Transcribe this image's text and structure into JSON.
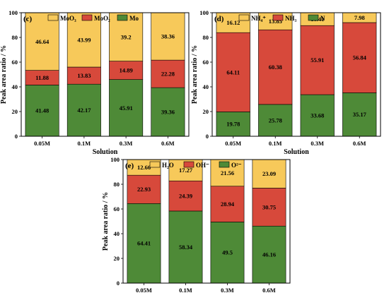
{
  "colors": {
    "yellow": "#F7C95A",
    "red": "#D7493B",
    "green": "#4E8A37"
  },
  "chart_data": [
    {
      "type": "bar",
      "stacked": true,
      "panel_label": "(c)",
      "categories": [
        "0.05M",
        "0.1M",
        "0.3M",
        "0.6M"
      ],
      "series": [
        {
          "name": "Mo",
          "color": "green",
          "values": [
            41.48,
            42.17,
            45.91,
            39.36
          ]
        },
        {
          "name": "MoO₂",
          "color": "red",
          "values": [
            11.88,
            13.83,
            14.89,
            22.28
          ]
        },
        {
          "name": "MoO₃",
          "color": "yellow",
          "values": [
            46.64,
            43.99,
            39.2,
            38.36
          ]
        }
      ],
      "legend_order": [
        "MoO₃",
        "MoO₂",
        "Mo"
      ],
      "legend_position": "top",
      "xlabel": "Solution",
      "ylabel": "Peak area ratio / %",
      "ylim": [
        0,
        100
      ],
      "yticks": [
        "0",
        "20",
        "40",
        "60",
        "80",
        "100"
      ],
      "grid": false
    },
    {
      "type": "bar",
      "stacked": true,
      "panel_label": "(d)",
      "categories": [
        "0.05M",
        "0.1M",
        "0.3M",
        "0.6M"
      ],
      "series": [
        {
          "name": "N",
          "color": "green",
          "values": [
            19.78,
            25.78,
            33.68,
            35.17
          ]
        },
        {
          "name": "NH₃",
          "color": "red",
          "values": [
            64.11,
            60.38,
            55.91,
            56.84
          ]
        },
        {
          "name": "NH₄⁺",
          "color": "yellow",
          "values": [
            16.12,
            13.85,
            10.41,
            7.98
          ]
        }
      ],
      "legend_order": [
        "NH₄⁺",
        "NH₃",
        "N"
      ],
      "legend_position": "top",
      "xlabel": "Solution",
      "ylabel": "Peak area ratio / %",
      "ylim": [
        0,
        100
      ],
      "yticks": [
        "0",
        "20",
        "40",
        "60",
        "80",
        "100"
      ],
      "grid": false
    },
    {
      "type": "bar",
      "stacked": true,
      "panel_label": "(e)",
      "categories": [
        "0.05M",
        "0.1M",
        "0.3M",
        "0.6M"
      ],
      "series": [
        {
          "name": "O²⁻",
          "color": "green",
          "values": [
            64.41,
            58.34,
            49.5,
            46.16
          ]
        },
        {
          "name": "OH⁻",
          "color": "red",
          "values": [
            22.93,
            24.39,
            28.94,
            30.75
          ]
        },
        {
          "name": "H₂O",
          "color": "yellow",
          "values": [
            12.66,
            17.27,
            21.56,
            23.09
          ]
        }
      ],
      "legend_order": [
        "H₂O",
        "OH⁻",
        "O²⁻"
      ],
      "legend_position": "top",
      "xlabel": "Solution",
      "ylabel": "Peak area ratio / %",
      "ylim": [
        0,
        100
      ],
      "yticks": [
        "0",
        "20",
        "40",
        "60",
        "80",
        "100"
      ],
      "grid": false
    }
  ]
}
